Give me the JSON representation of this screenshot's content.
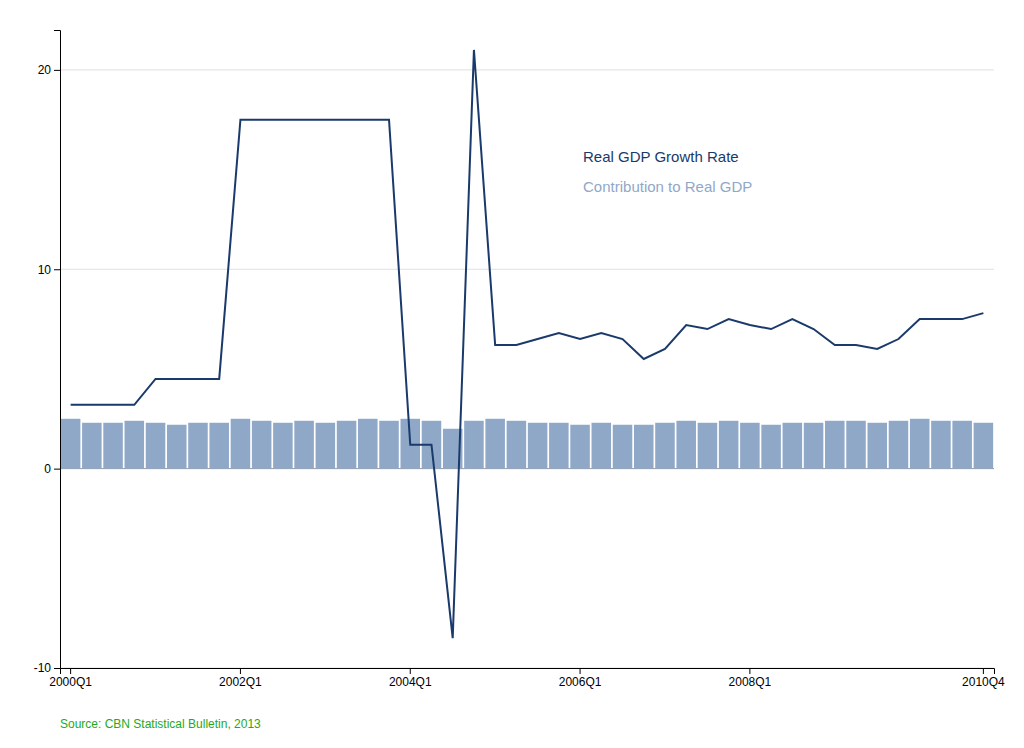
{
  "chart_data": {
    "type": "bar",
    "categories": [
      "2000Q1",
      null,
      null,
      null,
      null,
      null,
      null,
      null,
      "2002Q1",
      null,
      null,
      null,
      null,
      null,
      null,
      null,
      "2004Q1",
      null,
      null,
      null,
      null,
      null,
      null,
      null,
      "2006Q1",
      null,
      null,
      null,
      null,
      null,
      null,
      null,
      "2008Q1",
      null,
      null,
      null,
      null,
      null,
      null,
      null,
      null,
      null,
      null,
      "2010Q4"
    ],
    "series": [
      {
        "name": "Contribution to Real GDP",
        "type": "bar",
        "color": "#8fa8c8",
        "values": [
          2.5,
          2.3,
          2.3,
          2.4,
          2.3,
          2.2,
          2.3,
          2.3,
          2.5,
          2.4,
          2.3,
          2.4,
          2.3,
          2.4,
          2.5,
          2.4,
          2.5,
          2.4,
          2.0,
          2.4,
          2.5,
          2.4,
          2.3,
          2.3,
          2.2,
          2.3,
          2.2,
          2.2,
          2.3,
          2.4,
          2.3,
          2.4,
          2.3,
          2.2,
          2.3,
          2.3,
          2.4,
          2.4,
          2.3,
          2.4,
          2.5,
          2.4,
          2.4,
          2.3
        ]
      },
      {
        "name": "Real GDP Growth Rate",
        "type": "line",
        "color": "#1a3a6b",
        "values": [
          3.2,
          3.2,
          3.2,
          3.2,
          4.5,
          4.5,
          4.5,
          4.5,
          17.5,
          17.5,
          17.5,
          17.5,
          17.5,
          17.5,
          17.5,
          17.5,
          1.2,
          1.2,
          -8.5,
          21.0,
          6.2,
          6.2,
          6.5,
          6.8,
          6.5,
          6.8,
          6.5,
          5.5,
          6.0,
          7.2,
          7.0,
          7.5,
          7.2,
          7.0,
          7.5,
          7.0,
          6.2,
          6.2,
          6.0,
          6.5,
          7.5,
          7.5,
          7.5,
          7.8
        ]
      }
    ],
    "ylim": [
      -10,
      22
    ],
    "yticks": [
      -10,
      0,
      10,
      20
    ],
    "grid": true,
    "legend": "right",
    "annotations": [
      {
        "text": "Source: CBN Statistical Bulletin, 2013",
        "color": "#22aa22"
      }
    ]
  }
}
